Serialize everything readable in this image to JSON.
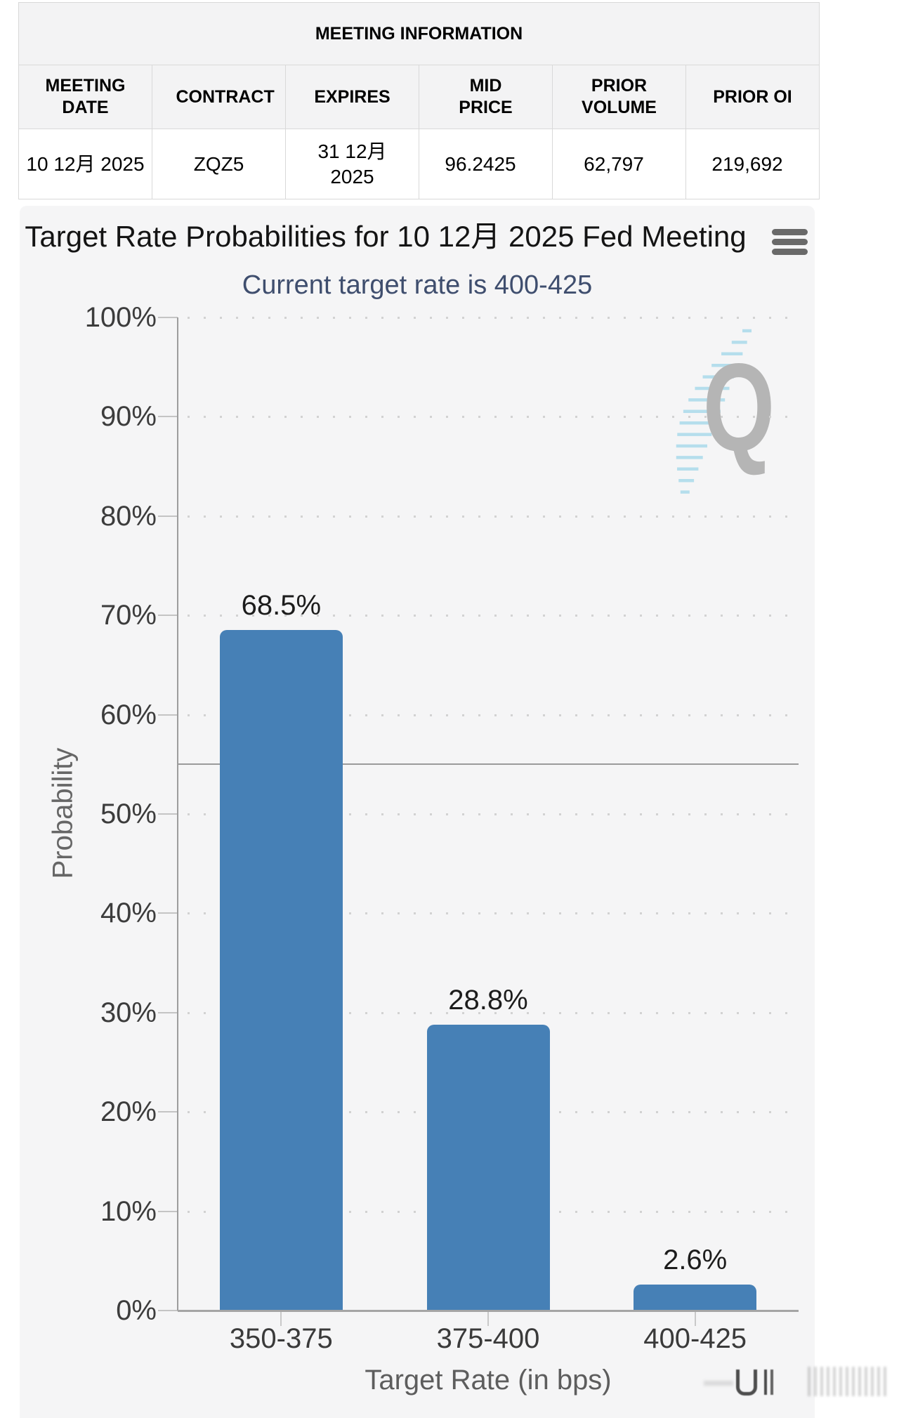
{
  "meeting_table": {
    "title": "MEETING INFORMATION",
    "columns": [
      "MEETING DATE",
      "CONTRACT",
      "EXPIRES",
      "MID PRICE",
      "PRIOR VOLUME",
      "PRIOR OI"
    ],
    "row": {
      "meeting_date": "10 12月 2025",
      "contract": "ZQZ5",
      "expires": "31 12月 2025",
      "mid_price": "96.2425",
      "prior_volume": "62,797",
      "prior_oi": "219,692"
    }
  },
  "chart": {
    "title": "Target Rate Probabilities for 10 12月 2025 Fed Meeting",
    "subtitle": "Current target rate is 400-425",
    "menu_icon": "hamburger-menu-icon",
    "watermark_letter": "Q"
  },
  "chart_data": {
    "type": "bar",
    "title": "Target Rate Probabilities for 10 12月 2025 Fed Meeting",
    "subtitle": "Current target rate is 400-425",
    "categories": [
      "350-375",
      "375-400",
      "400-425"
    ],
    "values": [
      68.5,
      28.8,
      2.6
    ],
    "value_labels": [
      "68.5%",
      "28.8%",
      "2.6%"
    ],
    "xlabel": "Target Rate (in bps)",
    "ylabel": "Probability",
    "ylim": [
      0,
      100
    ],
    "ytick_labels": [
      "0%",
      "10%",
      "20%",
      "30%",
      "40%",
      "50%",
      "60%",
      "70%",
      "80%",
      "90%",
      "100%"
    ],
    "reference_line": 55,
    "bar_color": "#4680b6",
    "grid": "dotted-horizontal",
    "legend": "none"
  }
}
